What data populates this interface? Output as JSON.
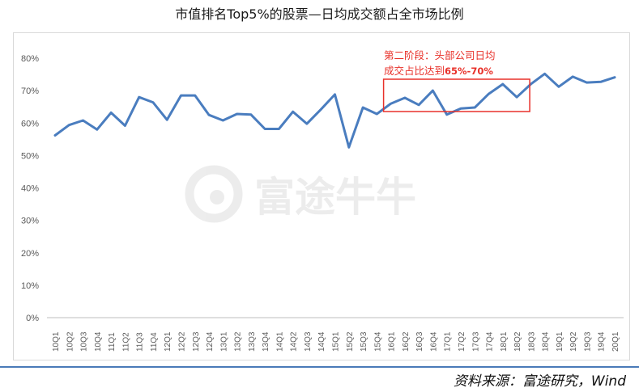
{
  "title": "市值排名Top5%的股票—日均成交额占全市场比例",
  "source": "资料来源：富途研究，Wind",
  "watermark": "富途牛牛",
  "chart_data": {
    "type": "line",
    "title": "市值排名Top5%的股票—日均成交额占全市场比例",
    "xlabel": "",
    "ylabel": "",
    "ylim": [
      0,
      80
    ],
    "yticks": [
      "0%",
      "10%",
      "20%",
      "30%",
      "40%",
      "50%",
      "60%",
      "70%",
      "80%"
    ],
    "grid": false,
    "categories": [
      "10Q1",
      "10Q2",
      "10Q3",
      "10Q4",
      "11Q1",
      "11Q2",
      "11Q3",
      "11Q4",
      "12Q1",
      "12Q2",
      "12Q3",
      "12Q4",
      "13Q1",
      "13Q2",
      "13Q3",
      "13Q4",
      "14Q1",
      "14Q2",
      "14Q3",
      "14Q4",
      "15Q1",
      "15Q2",
      "15Q3",
      "15Q4",
      "16Q1",
      "16Q2",
      "16Q3",
      "16Q4",
      "17Q1",
      "17Q2",
      "17Q3",
      "17Q4",
      "18Q1",
      "18Q2",
      "18Q3",
      "18Q4",
      "19Q1",
      "19Q2",
      "19Q3",
      "19Q4",
      "20Q1"
    ],
    "series": [
      {
        "values": [
          56.2,
          59.4,
          60.8,
          58.0,
          63.2,
          59.2,
          68.0,
          66.4,
          61.0,
          68.5,
          68.5,
          62.5,
          60.8,
          62.8,
          62.6,
          58.2,
          58.2,
          63.5,
          59.8,
          64.2,
          68.8,
          52.5,
          64.8,
          62.8,
          66.0,
          67.8,
          65.6,
          70.0,
          62.6,
          64.5,
          64.8,
          69.0,
          72.0,
          68.0,
          72.0,
          75.2,
          71.2,
          74.3,
          72.5,
          72.7,
          74.1
        ],
        "color": "#4a7dbf"
      }
    ],
    "annotation": {
      "text_line1": "第二阶段：头部公司日均",
      "text_line2_prefix": "成交占比达到",
      "text_line2_value": "65%-70%",
      "color": "#e8312a",
      "range": [
        "16Q1",
        "18Q2"
      ]
    }
  }
}
